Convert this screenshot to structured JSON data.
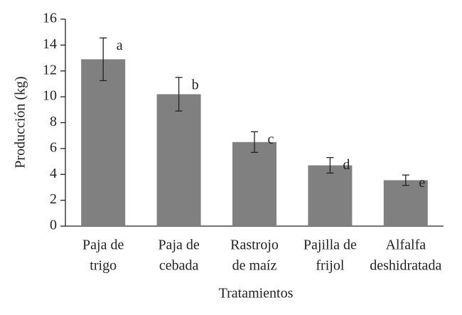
{
  "chart_data": {
    "type": "bar",
    "x_label": "Tratamientos",
    "y_label": "Producción (kg)",
    "categories": [
      [
        "Paja de",
        "trigo"
      ],
      [
        "Paja de",
        "cebada"
      ],
      [
        "Rastrojo",
        "de maíz"
      ],
      [
        "Pajilla de",
        "frijol"
      ],
      [
        "Alfalfa",
        "deshidratada"
      ]
    ],
    "values": [
      12.9,
      10.2,
      6.5,
      4.7,
      3.55
    ],
    "errors": [
      1.65,
      1.3,
      0.8,
      0.6,
      0.4
    ],
    "annotations": [
      "a",
      "b",
      "c",
      "d",
      "e"
    ],
    "color": "#808080",
    "ylim": [
      0,
      16
    ],
    "yticks": [
      0,
      2,
      4,
      6,
      8,
      10,
      12,
      14,
      16
    ],
    "grid": false
  }
}
